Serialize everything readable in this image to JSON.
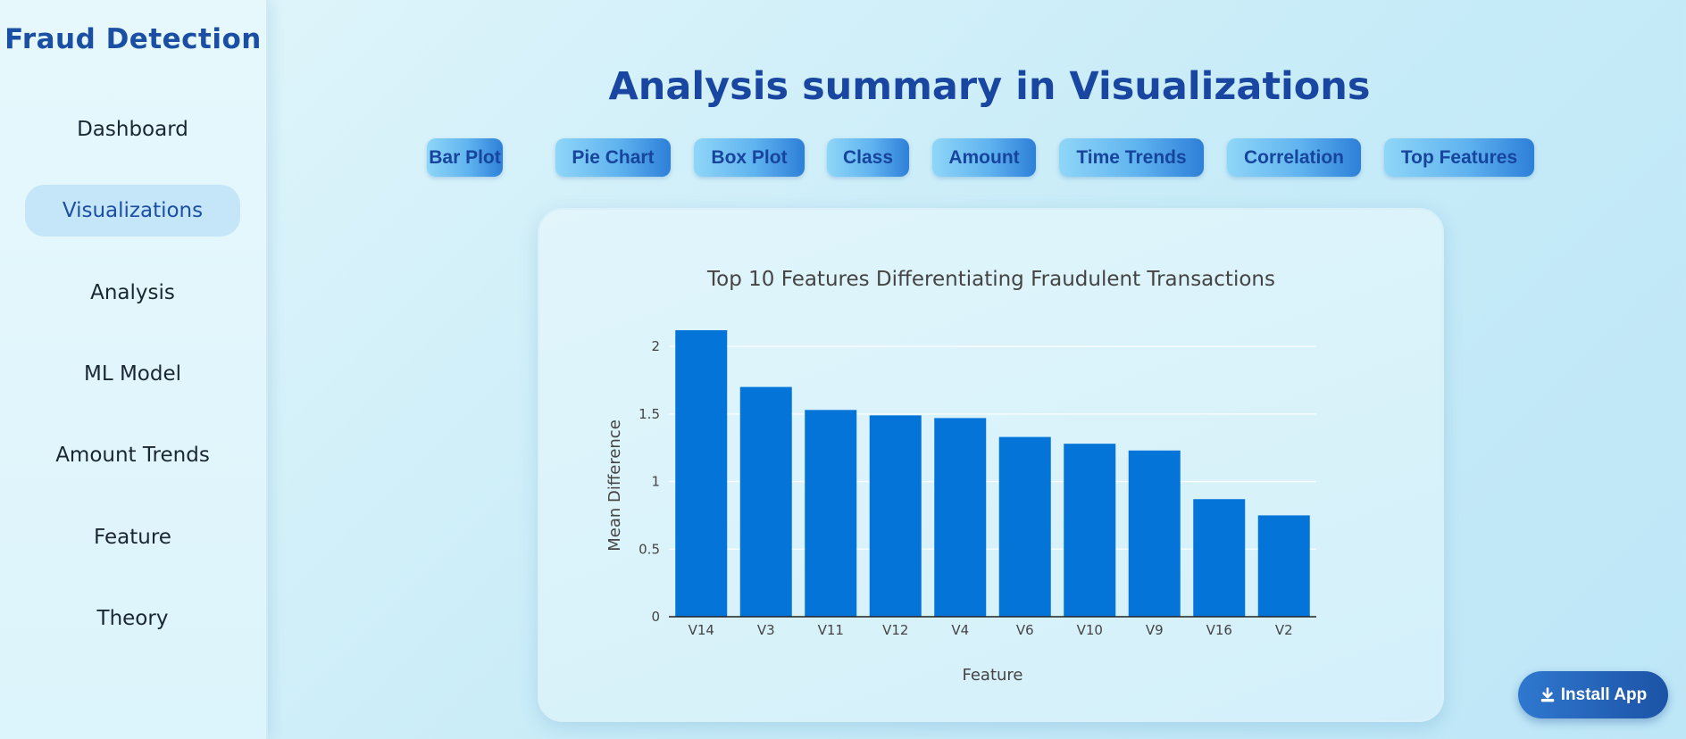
{
  "sidebar": {
    "brand": "Fraud Detection",
    "items": [
      {
        "label": "Dashboard",
        "active": false
      },
      {
        "label": "Visualizations",
        "active": true
      },
      {
        "label": "Analysis",
        "active": false
      },
      {
        "label": "ML Model",
        "active": false
      },
      {
        "label": "Amount Trends",
        "active": false
      },
      {
        "label": "Feature",
        "active": false
      },
      {
        "label": "Theory",
        "active": false
      }
    ]
  },
  "main": {
    "title": "Analysis summary in Visualizations",
    "tabs": [
      {
        "label": "Bar Plot"
      },
      {
        "label": "Pie Chart"
      },
      {
        "label": "Box Plot"
      },
      {
        "label": "Class"
      },
      {
        "label": "Amount"
      },
      {
        "label": "Time Trends"
      },
      {
        "label": "Correlation"
      },
      {
        "label": "Top Features"
      }
    ]
  },
  "install_button": {
    "label": "Install App",
    "icon": "download-icon"
  },
  "colors": {
    "bar": "#0474d9",
    "title": "#1946a0",
    "accent": "#1c53a6"
  },
  "chart_data": {
    "type": "bar",
    "title": "Top 10 Features Differentiating Fraudulent Transactions",
    "xlabel": "Feature",
    "ylabel": "Mean Difference",
    "categories": [
      "V14",
      "V3",
      "V11",
      "V12",
      "V4",
      "V6",
      "V10",
      "V9",
      "V16",
      "V2"
    ],
    "values": [
      2.12,
      1.7,
      1.53,
      1.49,
      1.47,
      1.33,
      1.28,
      1.23,
      0.87,
      0.75
    ],
    "ylim": [
      0,
      2.1
    ],
    "yticks": [
      "0",
      "0.5",
      "1",
      "1.5",
      "2"
    ],
    "grid": true,
    "legend": false
  }
}
